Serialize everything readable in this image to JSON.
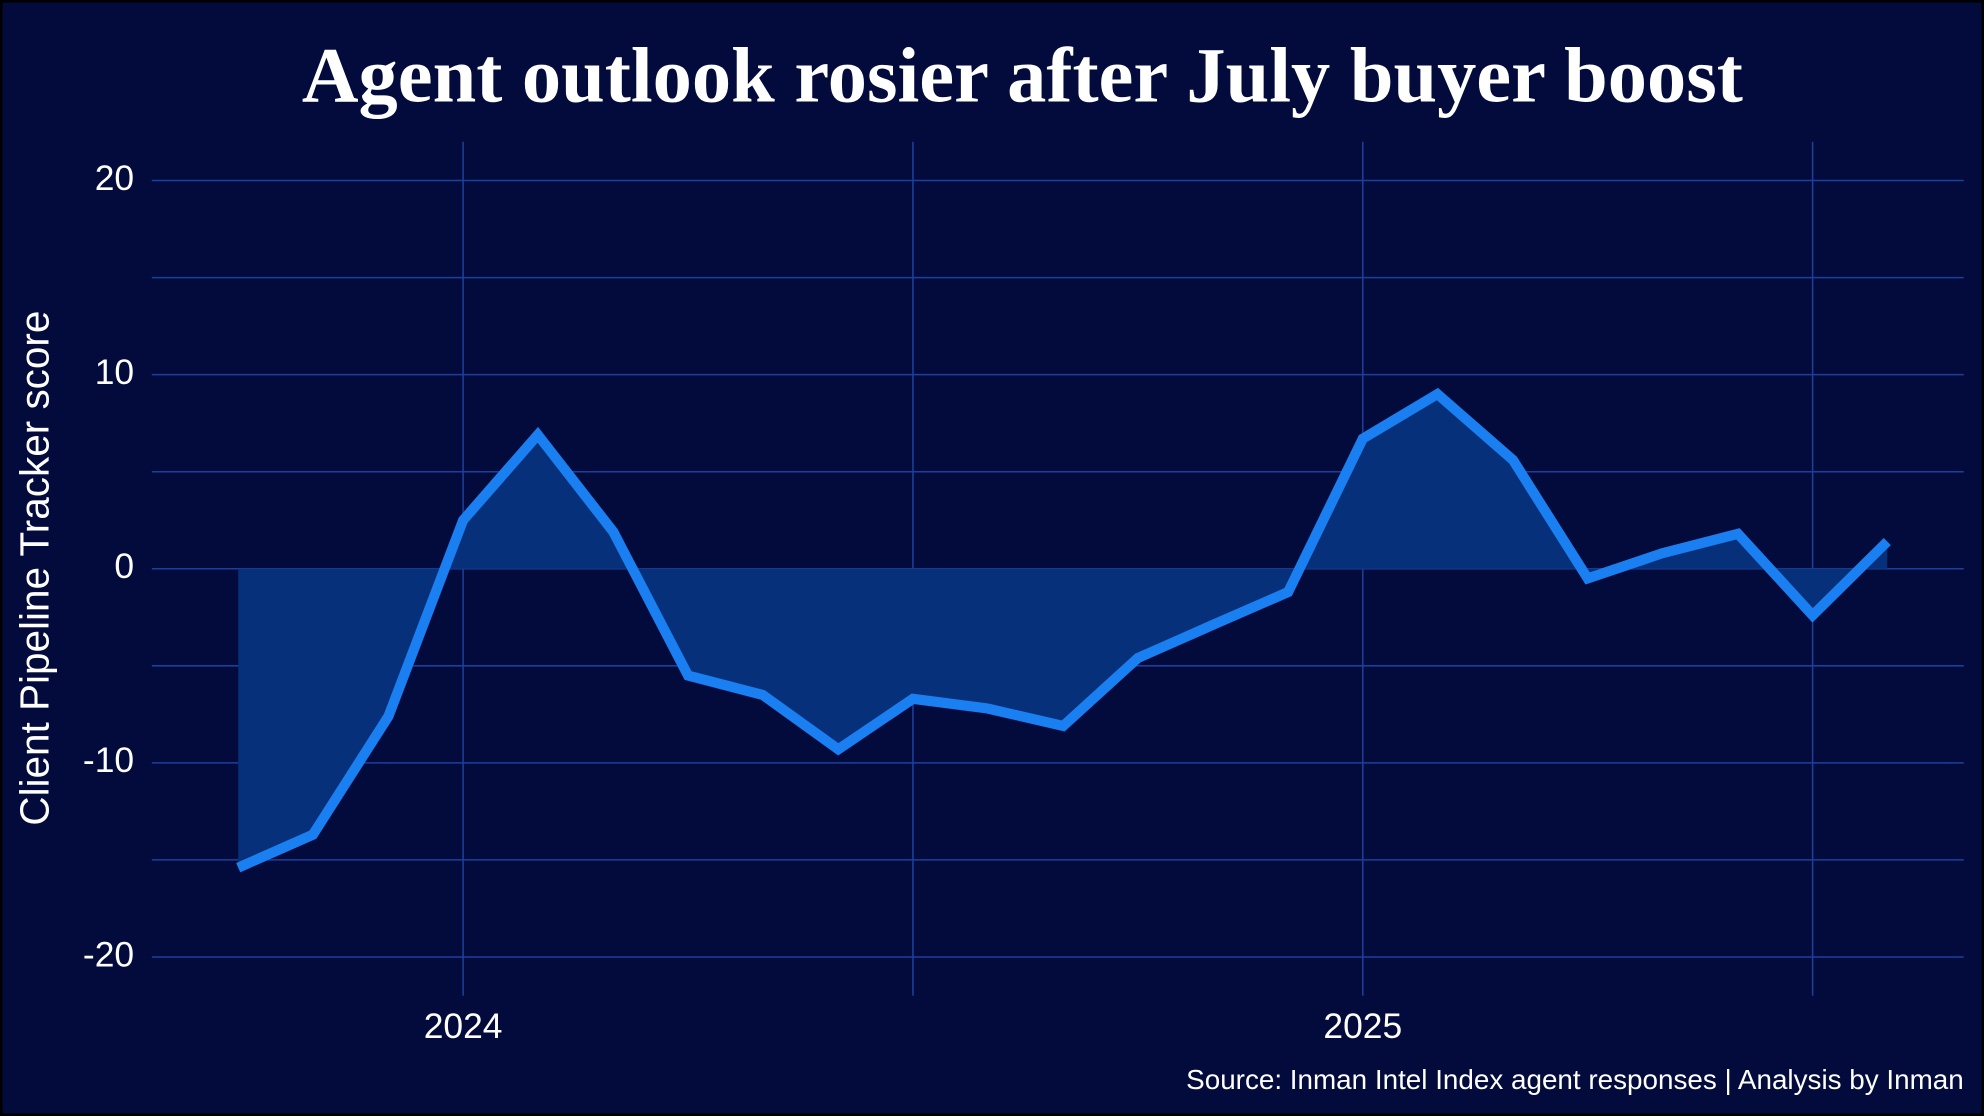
{
  "chart_data": {
    "type": "area-line",
    "title": "Agent outlook rosier after July buyer boost",
    "y_label": "Client Pipeline Tracker score",
    "source": "Source: Inman Intel Index agent responses | Analysis by Inman",
    "x": [
      2023.75,
      2023.833,
      2023.917,
      2024,
      2024.083,
      2024.167,
      2024.25,
      2024.333,
      2024.417,
      2024.5,
      2024.583,
      2024.667,
      2024.75,
      2024.833,
      2024.917,
      2025,
      2025.083,
      2025.167,
      2025.25,
      2025.333,
      2025.417,
      2025.5,
      2025.583
    ],
    "series": [
      {
        "color": "#1a7ff0",
        "fill": "#06307a",
        "values": [
          -15.4,
          -13.7,
          -7.6,
          2.5,
          6.9,
          1.9,
          -5.5,
          -6.5,
          -9.3,
          -6.7,
          -7.2,
          -8.1,
          -4.6,
          -2.9,
          -1.2,
          6.7,
          9.0,
          5.6,
          -0.5,
          0.8,
          1.8,
          -2.4,
          1.4
        ]
      }
    ],
    "xlim": [
      2023.654,
      2025.668
    ],
    "xticks": [
      2024,
      2025
    ],
    "xminor": [
      2024.5,
      2025.5
    ],
    "ylim": [
      -22,
      22
    ],
    "yticks": [
      -20,
      -10,
      0,
      10,
      20
    ],
    "yminor": [
      -15,
      -5,
      5,
      15
    ],
    "grid": true
  }
}
